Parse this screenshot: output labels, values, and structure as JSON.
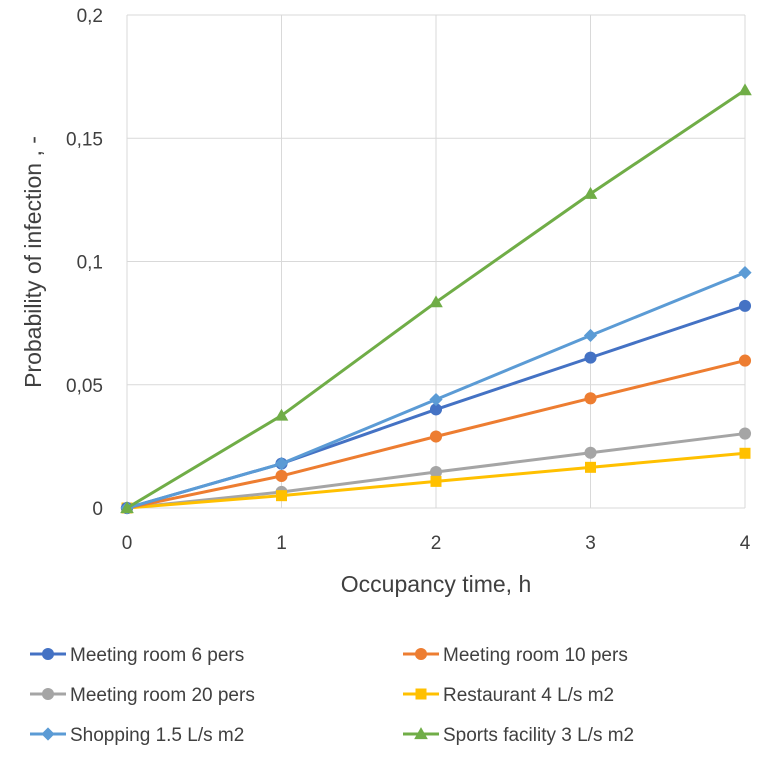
{
  "chart_data": {
    "type": "line",
    "title": "",
    "xlabel": "Occupancy time, h",
    "ylabel": "Probability of infection , -",
    "x": [
      0,
      1,
      2,
      3,
      4
    ],
    "x_tick_labels": [
      "0",
      "1",
      "2",
      "3",
      "4"
    ],
    "y_tick_labels": [
      "0",
      "0,05",
      "0,1",
      "0,15",
      "0,2"
    ],
    "y_ticks": [
      0,
      0.05,
      0.1,
      0.15,
      0.2
    ],
    "xlim": [
      0,
      4
    ],
    "ylim": [
      0,
      0.2
    ],
    "grid": true,
    "legend_position": "bottom",
    "series": [
      {
        "name": "Meeting room 6 pers",
        "color": "#4472C4",
        "marker": "circle",
        "values": [
          0,
          0.018,
          0.04,
          0.061,
          0.082
        ]
      },
      {
        "name": "Meeting room 10 pers",
        "color": "#ED7D31",
        "marker": "circle",
        "values": [
          0,
          0.013,
          0.029,
          0.0445,
          0.0598
        ]
      },
      {
        "name": "Meeting room 20 pers",
        "color": "#A5A5A5",
        "marker": "circle",
        "values": [
          0,
          0.0065,
          0.0146,
          0.0224,
          0.0302
        ]
      },
      {
        "name": "Restaurant 4 L/s m2",
        "color": "#FFC000",
        "marker": "square",
        "values": [
          0,
          0.005,
          0.0108,
          0.0165,
          0.0222
        ]
      },
      {
        "name": "Shopping 1.5 L/s m2",
        "color": "#5B9BD5",
        "marker": "diamond",
        "values": [
          0,
          0.018,
          0.044,
          0.07,
          0.0955
        ]
      },
      {
        "name": "Sports facility 3 L/s m2",
        "color": "#70AD47",
        "marker": "triangle",
        "values": [
          0,
          0.0375,
          0.0835,
          0.1275,
          0.1695
        ]
      }
    ]
  }
}
